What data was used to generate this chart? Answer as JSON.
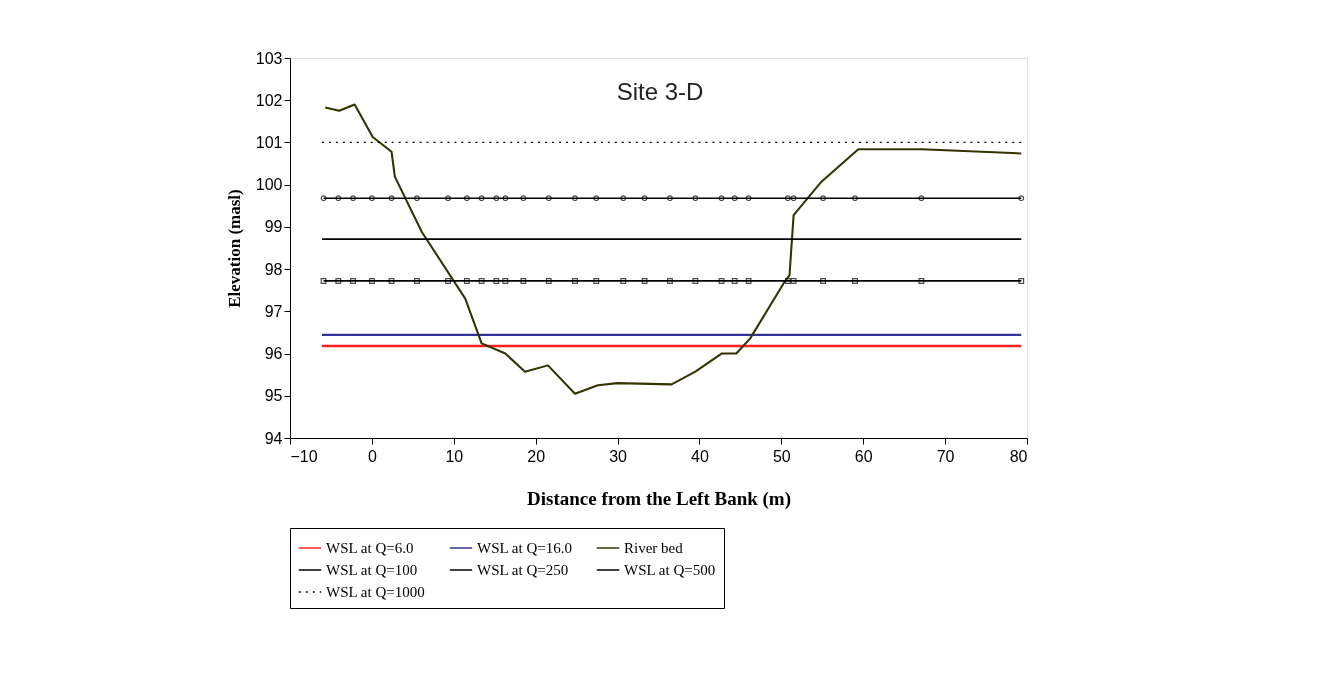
{
  "chart_data": {
    "type": "line",
    "title": "Site 3-D",
    "xlabel": "Distance from the Left Bank (m)",
    "ylabel": "Elevation (masl)",
    "xlim": [
      -10,
      80
    ],
    "xticks": [
      -10,
      0,
      10,
      20,
      30,
      40,
      50,
      60,
      70,
      80
    ],
    "ylim": [
      94,
      103
    ],
    "yticks": [
      94,
      95,
      96,
      97,
      98,
      99,
      100,
      101,
      102,
      103
    ],
    "grid": false,
    "legend": "bottom",
    "series": [
      {
        "name": "WSL at Q=6.0",
        "color": "#ff2020",
        "marker": "none",
        "line_style": "solid",
        "x": [
          -6.1,
          79.3
        ],
        "values": [
          96.18,
          96.18
        ]
      },
      {
        "name": "WSL at Q=16.0",
        "color": "#333399",
        "marker": "none",
        "line_style": "solid",
        "x": [
          -6.1,
          79.3
        ],
        "values": [
          96.44,
          96.44
        ]
      },
      {
        "name": "River bed",
        "color": "#333300",
        "marker": "none",
        "line_style": "solid",
        "x": [
          -5.7,
          -4.0,
          -2.1,
          0.1,
          2.4,
          2.8,
          6.1,
          11.4,
          13.4,
          16.3,
          18.7,
          21.5,
          24.8,
          27.6,
          30.0,
          36.6,
          39.5,
          42.7,
          44.5,
          46.2,
          50.4,
          51.0,
          51.5,
          54.9,
          59.4,
          67.1,
          79.3
        ],
        "values": [
          101.83,
          101.75,
          101.9,
          101.13,
          100.78,
          100.19,
          98.88,
          97.3,
          96.24,
          96.0,
          95.57,
          95.72,
          95.05,
          95.25,
          95.3,
          95.27,
          95.57,
          96.0,
          96.0,
          96.36,
          97.7,
          97.86,
          99.28,
          100.07,
          100.84,
          100.84,
          100.74
        ]
      },
      {
        "name": "WSL at Q=100",
        "color": "#000000",
        "marker": "square",
        "line_style": "solid",
        "x": [
          -5.9,
          -4.1,
          -2.3,
          0.0,
          2.4,
          5.5,
          9.3,
          11.6,
          13.4,
          15.2,
          16.3,
          18.5,
          21.6,
          24.8,
          27.4,
          30.7,
          33.3,
          36.4,
          39.5,
          42.7,
          44.3,
          46.0,
          50.8,
          51.5,
          55.1,
          59.0,
          67.1,
          79.3
        ],
        "values": [
          97.72,
          97.72,
          97.72,
          97.72,
          97.72,
          97.72,
          97.72,
          97.72,
          97.72,
          97.72,
          97.72,
          97.72,
          97.72,
          97.72,
          97.72,
          97.72,
          97.72,
          97.72,
          97.72,
          97.72,
          97.72,
          97.72,
          97.72,
          97.72,
          97.72,
          97.72,
          97.72,
          97.72
        ]
      },
      {
        "name": "WSL at Q=250",
        "color": "#000000",
        "marker": "none",
        "line_style": "solid",
        "x": [
          -6.1,
          79.3
        ],
        "values": [
          98.71,
          98.71
        ]
      },
      {
        "name": "WSL at Q=500",
        "color": "#000000",
        "marker": "circle",
        "line_style": "solid",
        "x": [
          -5.9,
          -4.1,
          -2.3,
          0.0,
          2.4,
          5.5,
          9.3,
          11.6,
          13.4,
          15.2,
          16.3,
          18.5,
          21.6,
          24.8,
          27.4,
          30.7,
          33.3,
          36.4,
          39.5,
          42.7,
          44.3,
          46.0,
          50.8,
          51.5,
          55.1,
          59.0,
          67.1,
          79.3
        ],
        "values": [
          99.68,
          99.68,
          99.68,
          99.68,
          99.68,
          99.68,
          99.68,
          99.68,
          99.68,
          99.68,
          99.68,
          99.68,
          99.68,
          99.68,
          99.68,
          99.68,
          99.68,
          99.68,
          99.68,
          99.68,
          99.68,
          99.68,
          99.68,
          99.68,
          99.68,
          99.68,
          99.68,
          99.68
        ]
      },
      {
        "name": "WSL at Q=1000",
        "color": "#000000",
        "marker": "none",
        "line_style": "dotted",
        "x": [
          -6.1,
          79.3
        ],
        "values": [
          101.0,
          101.0
        ]
      }
    ]
  }
}
